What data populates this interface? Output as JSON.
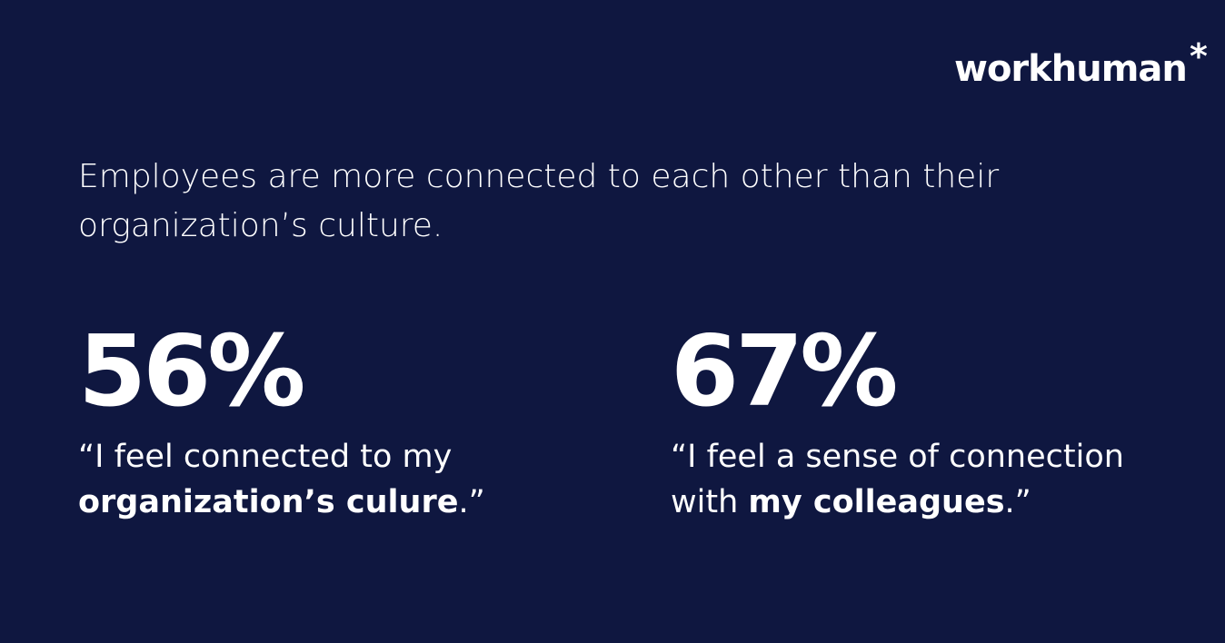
{
  "brand": {
    "logo_text": "workhuman",
    "logo_mark": "*"
  },
  "headline": "Employees are more connected to each other than their organization’s culture.",
  "stats": [
    {
      "value": "56%",
      "quote_open": "“I feel connected to my ",
      "quote_bold": "organization’s culure",
      "quote_close": ".”"
    },
    {
      "value": "67%",
      "quote_open": "“I feel a sense of connection with ",
      "quote_bold": "my colleagues",
      "quote_close": ".”"
    }
  ],
  "colors": {
    "background": "#0f1740",
    "text": "#ffffff"
  }
}
